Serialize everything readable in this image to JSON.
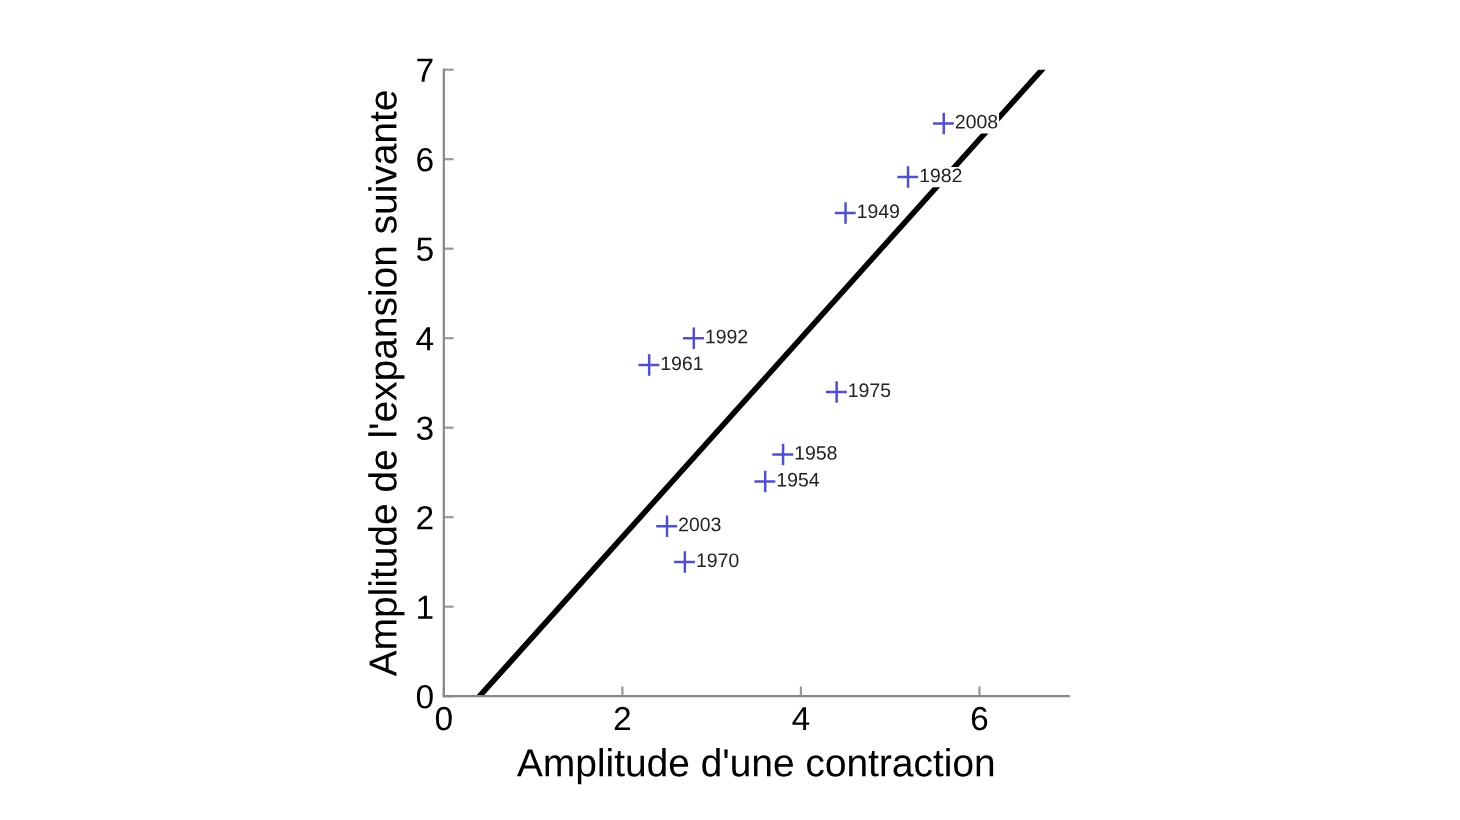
{
  "chart_data": {
    "type": "scatter",
    "xlabel": "Amplitude d'une contraction",
    "ylabel": "Amplitude de l'expansion suivante",
    "series": [
      {
        "color": "#5050c8",
        "marker": "cross",
        "x": [
          5.6,
          5.2,
          4.5,
          2.8,
          2.3,
          4.4,
          3.8,
          3.6,
          2.5,
          2.7
        ],
        "values": [
          6.4,
          5.8,
          5.4,
          4.0,
          3.7,
          3.4,
          2.7,
          2.4,
          1.9,
          1.5
        ]
      },
      {
        "type": "line",
        "color": "#000000",
        "x": [
          0.4,
          6.7
        ],
        "values": [
          0,
          7
        ]
      }
    ],
    "annotations": [
      {
        "text": "2008",
        "x": 5.6,
        "y": 6.4
      },
      {
        "text": "1982",
        "x": 5.2,
        "y": 5.8
      },
      {
        "text": "1949",
        "x": 4.5,
        "y": 5.4
      },
      {
        "text": "1992",
        "x": 2.8,
        "y": 4.0
      },
      {
        "text": "1961",
        "x": 2.3,
        "y": 3.7
      },
      {
        "text": "1975",
        "x": 4.4,
        "y": 3.4
      },
      {
        "text": "1958",
        "x": 3.8,
        "y": 2.7
      },
      {
        "text": "1954",
        "x": 3.6,
        "y": 2.4
      },
      {
        "text": "2003",
        "x": 2.5,
        "y": 1.9
      },
      {
        "text": "1970",
        "x": 2.7,
        "y": 1.5
      }
    ],
    "xlim": [
      0,
      7
    ],
    "ylim": [
      0,
      7
    ],
    "xticks": [
      0,
      2,
      4,
      6
    ],
    "yticks": [
      0,
      1,
      2,
      3,
      4,
      5,
      6,
      7
    ],
    "grid": false,
    "legend": false
  }
}
